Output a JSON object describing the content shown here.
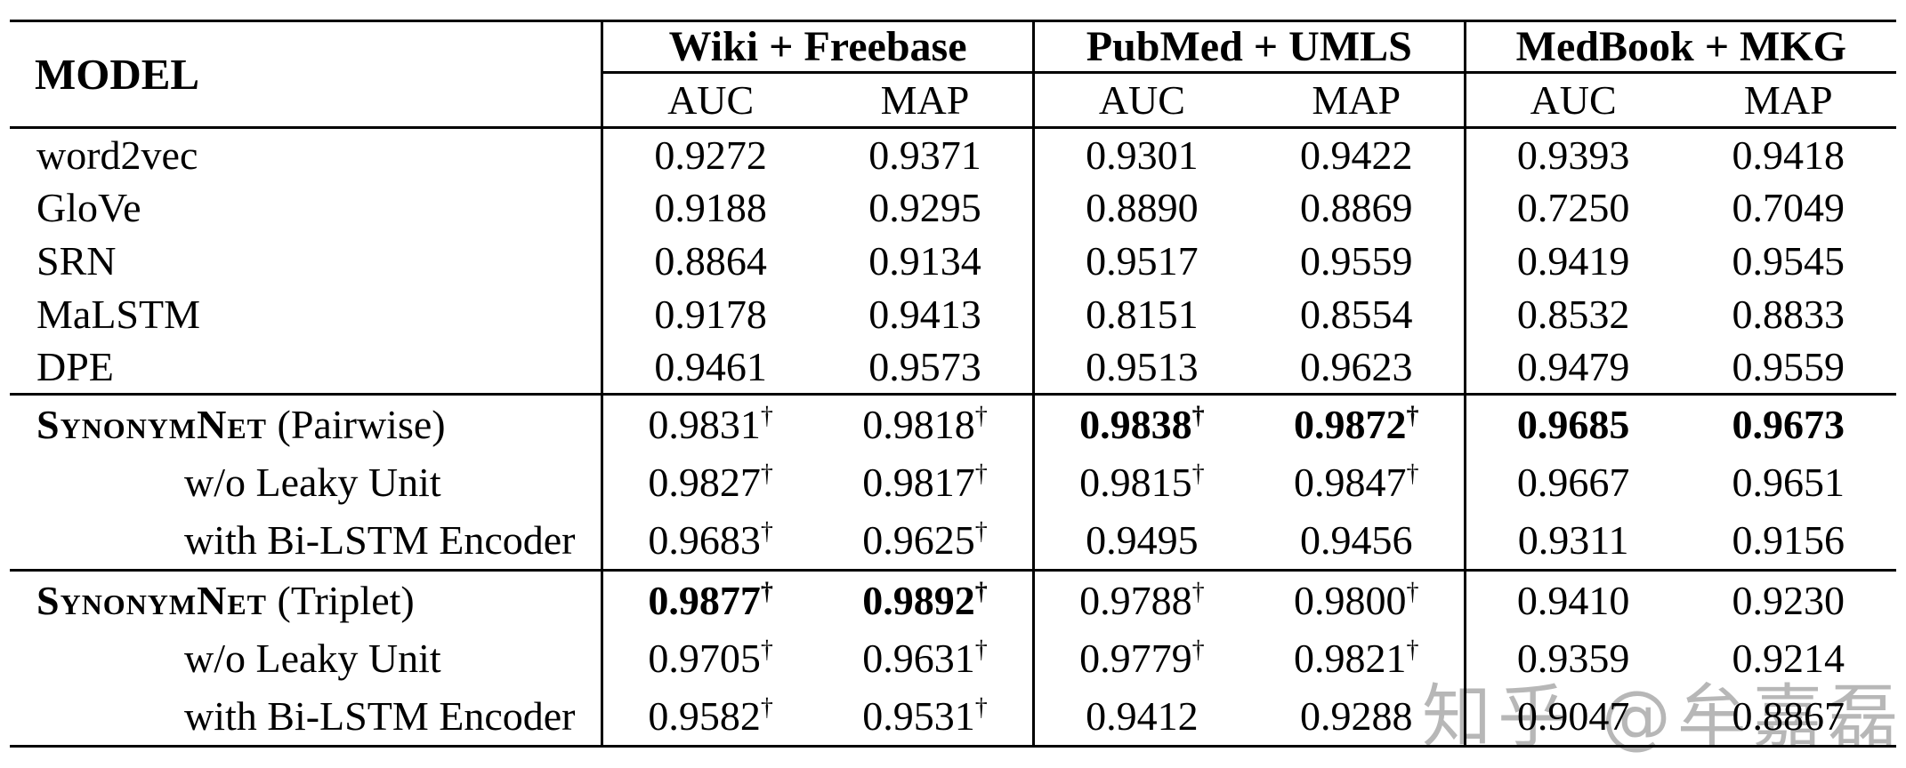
{
  "table": {
    "model_header": "MODEL",
    "groups": [
      {
        "label": "Wiki + Freebase",
        "metrics": [
          "AUC",
          "MAP"
        ]
      },
      {
        "label": "PubMed + UMLS",
        "metrics": [
          "AUC",
          "MAP"
        ]
      },
      {
        "label": "MedBook + MKG",
        "metrics": [
          "AUC",
          "MAP"
        ]
      }
    ],
    "rows": [
      {
        "model": "word2vec",
        "cells": [
          {
            "v": "0.9272"
          },
          {
            "v": "0.9371"
          },
          {
            "v": "0.9301"
          },
          {
            "v": "0.9422"
          },
          {
            "v": "0.9393"
          },
          {
            "v": "0.9418"
          }
        ]
      },
      {
        "model": "GloVe",
        "cells": [
          {
            "v": "0.9188"
          },
          {
            "v": "0.9295"
          },
          {
            "v": "0.8890"
          },
          {
            "v": "0.8869"
          },
          {
            "v": "0.7250"
          },
          {
            "v": "0.7049"
          }
        ]
      },
      {
        "model": "SRN",
        "cells": [
          {
            "v": "0.8864"
          },
          {
            "v": "0.9134"
          },
          {
            "v": "0.9517"
          },
          {
            "v": "0.9559"
          },
          {
            "v": "0.9419"
          },
          {
            "v": "0.9545"
          }
        ]
      },
      {
        "model": "MaLSTM",
        "cells": [
          {
            "v": "0.9178"
          },
          {
            "v": "0.9413"
          },
          {
            "v": "0.8151"
          },
          {
            "v": "0.8554"
          },
          {
            "v": "0.8532"
          },
          {
            "v": "0.8833"
          }
        ]
      },
      {
        "model": "DPE",
        "cells": [
          {
            "v": "0.9461"
          },
          {
            "v": "0.9573"
          },
          {
            "v": "0.9513"
          },
          {
            "v": "0.9623"
          },
          {
            "v": "0.9479"
          },
          {
            "v": "0.9559"
          }
        ]
      },
      {
        "model_main": "SynonymNet",
        "model_suffix": " (Pairwise)",
        "cells": [
          {
            "v": "0.9831",
            "s": "†"
          },
          {
            "v": "0.9818",
            "s": "†"
          },
          {
            "v": "0.9838",
            "s": "†"
          },
          {
            "v": "0.9872",
            "s": "†"
          },
          {
            "v": "0.9685"
          },
          {
            "v": "0.9673"
          }
        ]
      },
      {
        "model": "w/o Leaky Unit",
        "cells": [
          {
            "v": "0.9827",
            "s": "†"
          },
          {
            "v": "0.9817",
            "s": "†"
          },
          {
            "v": "0.9815",
            "s": "†"
          },
          {
            "v": "0.9847",
            "s": "†"
          },
          {
            "v": "0.9667"
          },
          {
            "v": "0.9651"
          }
        ]
      },
      {
        "model": "with Bi-LSTM Encoder",
        "cells": [
          {
            "v": "0.9683",
            "s": "†"
          },
          {
            "v": "0.9625",
            "s": "†"
          },
          {
            "v": "0.9495"
          },
          {
            "v": "0.9456"
          },
          {
            "v": "0.9311"
          },
          {
            "v": "0.9156"
          }
        ]
      },
      {
        "model_main": "SynonymNet",
        "model_suffix": " (Triplet)",
        "cells": [
          {
            "v": "0.9877",
            "s": "†"
          },
          {
            "v": "0.9892",
            "s": "†"
          },
          {
            "v": "0.9788",
            "s": "†"
          },
          {
            "v": "0.9800",
            "s": "†"
          },
          {
            "v": "0.9410"
          },
          {
            "v": "0.9230"
          }
        ]
      },
      {
        "model": "w/o Leaky Unit",
        "cells": [
          {
            "v": "0.9705",
            "s": "†"
          },
          {
            "v": "0.9631",
            "s": "†"
          },
          {
            "v": "0.9779",
            "s": "†"
          },
          {
            "v": "0.9821",
            "s": "†"
          },
          {
            "v": "0.9359"
          },
          {
            "v": "0.9214"
          }
        ]
      },
      {
        "model": "with Bi-LSTM Encoder",
        "cells": [
          {
            "v": "0.9582",
            "s": "†"
          },
          {
            "v": "0.9531",
            "s": "†"
          },
          {
            "v": "0.9412"
          },
          {
            "v": "0.9288"
          },
          {
            "v": "0.9047"
          },
          {
            "v": "0.8867"
          }
        ]
      }
    ]
  },
  "watermark": {
    "text": "知乎 @牟嘉磊"
  }
}
